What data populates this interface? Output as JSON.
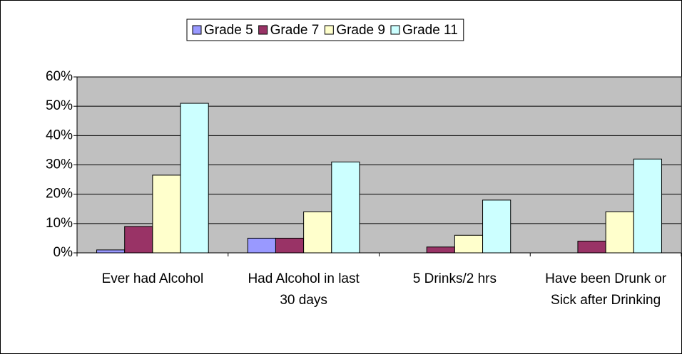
{
  "chart_data": {
    "type": "bar",
    "categories": [
      "Ever had Alcohol",
      "Had Alcohol in last 30 days",
      "5 Drinks/2 hrs",
      "Have been Drunk or Sick after Drinking"
    ],
    "series": [
      {
        "name": "Grade 5",
        "color": "#9999ff",
        "values": [
          1,
          5,
          0,
          0
        ]
      },
      {
        "name": "Grade 7",
        "color": "#993366",
        "values": [
          9,
          5,
          2,
          4
        ]
      },
      {
        "name": "Grade 9",
        "color": "#ffffcc",
        "values": [
          26.5,
          14,
          6,
          14
        ]
      },
      {
        "name": "Grade 11",
        "color": "#ccffff",
        "values": [
          51,
          31,
          18,
          32
        ]
      }
    ],
    "ylim": [
      0,
      60
    ],
    "yticks": [
      {
        "value": 0,
        "label": "0%"
      },
      {
        "value": 10,
        "label": "10%"
      },
      {
        "value": 20,
        "label": "20%"
      },
      {
        "value": 30,
        "label": "30%"
      },
      {
        "value": 40,
        "label": "40%"
      },
      {
        "value": 50,
        "label": "50%"
      },
      {
        "value": 60,
        "label": "60%"
      }
    ],
    "grid": true,
    "plot_background": "#c0c0c0",
    "legend": "top"
  }
}
